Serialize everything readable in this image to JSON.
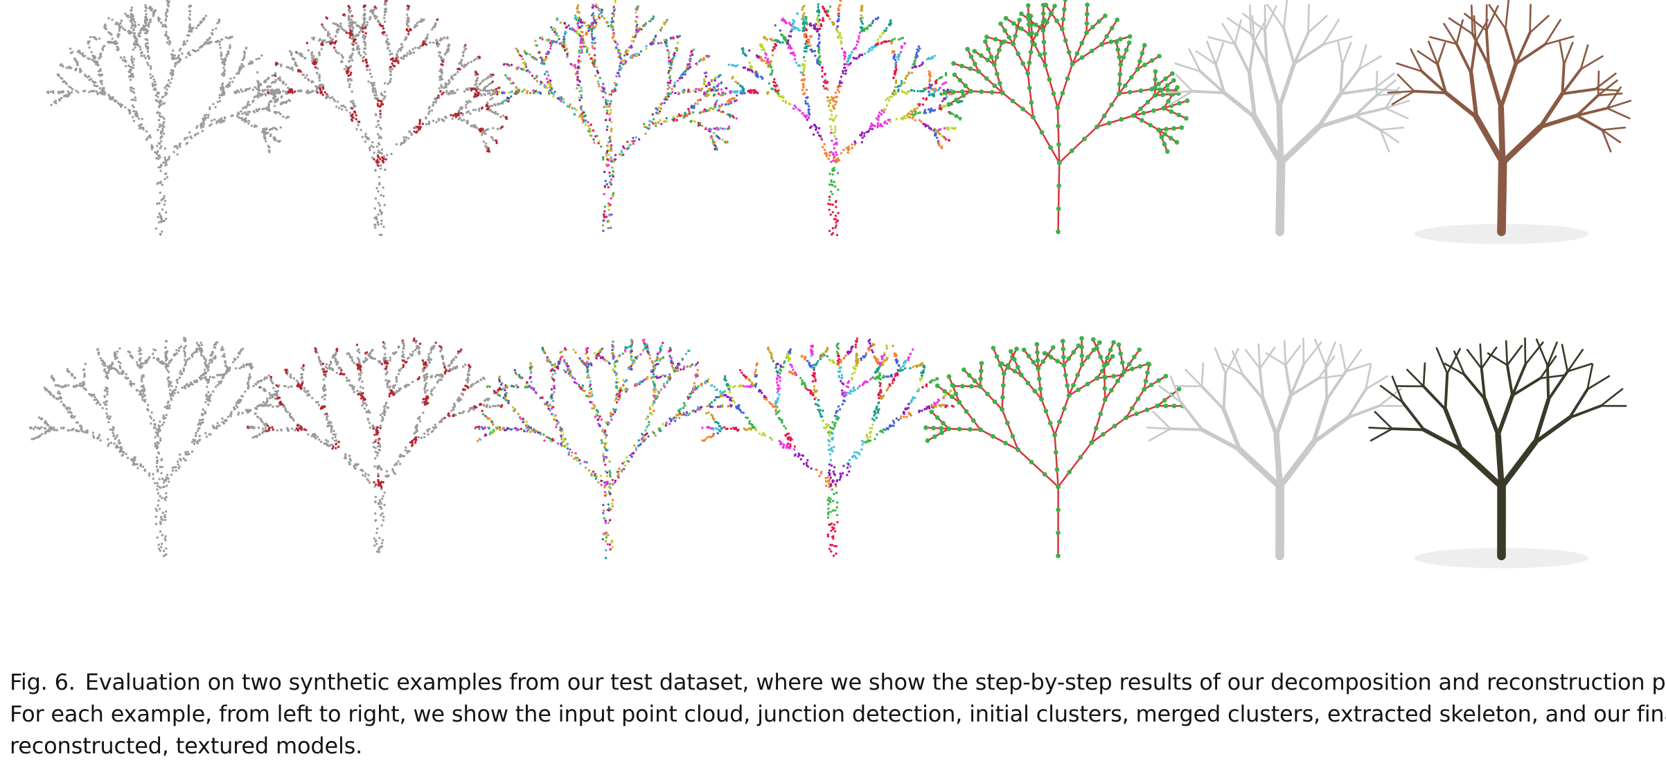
{
  "figure": {
    "number_label": "Fig. 6.",
    "rows": [
      {
        "name": "example-1",
        "trunk_color": "#8a5a44",
        "panels": [
          "input-point-cloud",
          "junction-detection",
          "initial-clusters",
          "merged-clusters",
          "extracted-skeleton",
          "reconstructed-model",
          "textured-model"
        ]
      },
      {
        "name": "example-2",
        "trunk_color": "#3b3a2a",
        "panels": [
          "input-point-cloud",
          "junction-detection",
          "initial-clusters",
          "merged-clusters",
          "extracted-skeleton",
          "reconstructed-model",
          "textured-model"
        ]
      }
    ],
    "colors": {
      "point_gray": "#9b9b9b",
      "junction_red": "#b3262f",
      "skeleton_green": "#3fb04a",
      "skeleton_red": "#d8343a",
      "model_gray": "#c9c9c9",
      "bark_brown": "#8a5a44",
      "bark_dark": "#3b3a2a",
      "cluster_palette": [
        "#e6194b",
        "#3cb44b",
        "#4363d8",
        "#f58231",
        "#911eb4",
        "#46c0d8",
        "#f032e6",
        "#bcd62f",
        "#1a9c8c",
        "#c9a227"
      ]
    }
  },
  "caption": {
    "line1": "Evaluation on two synthetic examples from our test dataset, where we show the step-by-step results of our decomposition and reconstruction process.",
    "line2": "For each example, from left to right, we show the input point cloud, junction detection, initial clusters, merged clusters, extracted skeleton, and our final",
    "line3": "reconstructed, textured models."
  }
}
